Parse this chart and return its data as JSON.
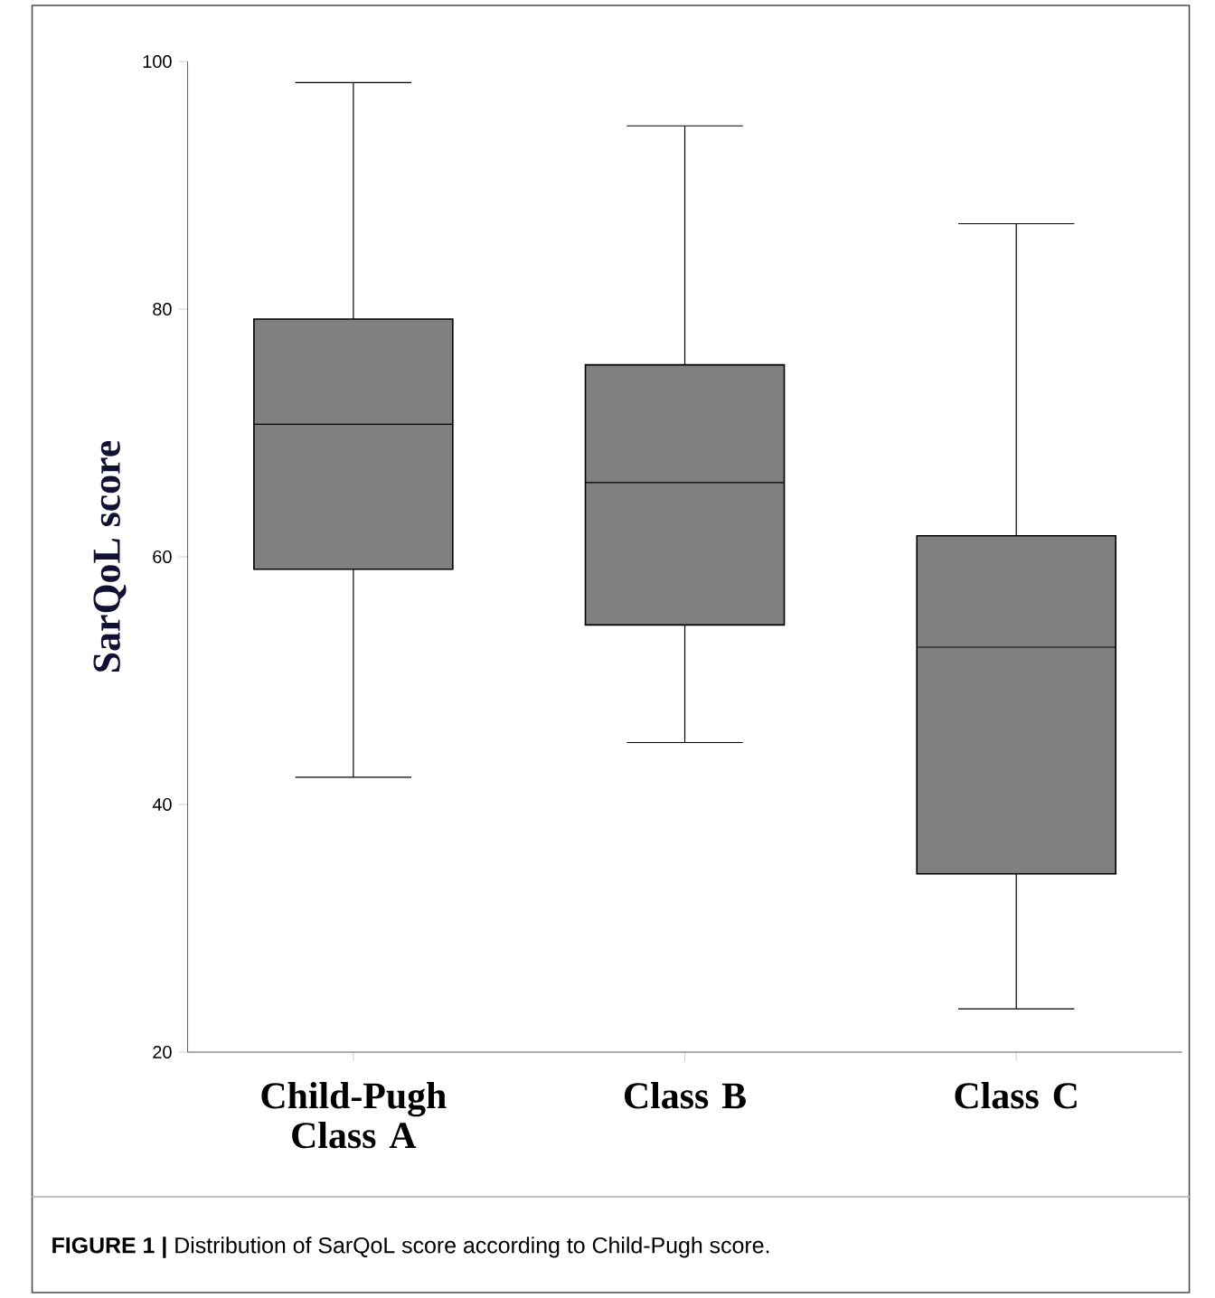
{
  "chart_data": {
    "type": "box",
    "ylabel": "SarQoL score",
    "categories": [
      "Child-Pugh Class A",
      "Class B",
      "Class C"
    ],
    "boxes": [
      {
        "low": 42.2,
        "q1": 59.0,
        "median": 70.7,
        "q3": 79.2,
        "high": 98.3
      },
      {
        "low": 45.0,
        "q1": 54.5,
        "median": 66.0,
        "q3": 75.5,
        "high": 94.8
      },
      {
        "low": 23.5,
        "q1": 34.4,
        "median": 52.7,
        "q3": 61.7,
        "high": 86.9
      }
    ],
    "color": "#808080",
    "ylim": [
      20,
      100
    ],
    "yticks": [
      20,
      40,
      60,
      80,
      100
    ],
    "annotations": [
      "**FIGURE 1 |** Distribution of SarQoL score according to Child-Pugh score."
    ]
  }
}
